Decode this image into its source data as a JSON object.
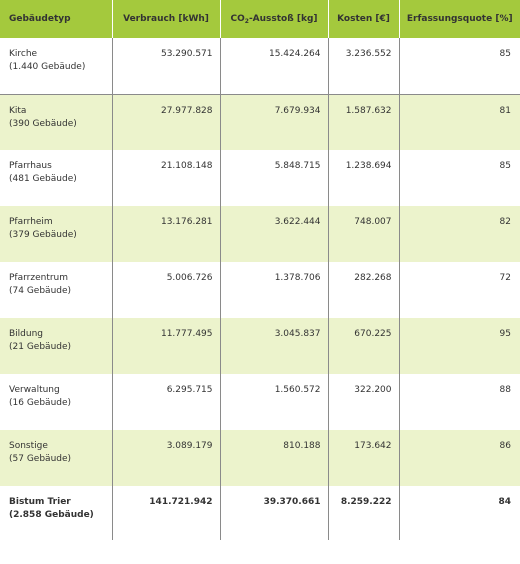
{
  "table": {
    "headers": {
      "type": "Gebäudetyp",
      "consumption": "Verbrauch [kWh]",
      "co2_prefix": "CO",
      "co2_sub": "2",
      "co2_suffix": "-Ausstoß [kg]",
      "cost": "Kosten [€]",
      "rate": "Erfassungsquote [%]"
    },
    "rows": [
      {
        "name": "Kirche",
        "count": "(1.440 Gebäude)",
        "consumption": "53.290.571",
        "co2": "15.424.264",
        "cost": "3.236.552",
        "rate": "85"
      },
      {
        "name": "Kita",
        "count": "(390 Gebäude)",
        "consumption": "27.977.828",
        "co2": "7.679.934",
        "cost": "1.587.632",
        "rate": "81"
      },
      {
        "name": "Pfarrhaus",
        "count": "(481 Gebäude)",
        "consumption": "21.108.148",
        "co2": "5.848.715",
        "cost": "1.238.694",
        "rate": "85"
      },
      {
        "name": "Pfarrheim",
        "count": "(379 Gebäude)",
        "consumption": "13.176.281",
        "co2": "3.622.444",
        "cost": "748.007",
        "rate": "82"
      },
      {
        "name": "Pfarrzentrum",
        "count": "(74 Gebäude)",
        "consumption": "5.006.726",
        "co2": "1.378.706",
        "cost": "282.268",
        "rate": "72"
      },
      {
        "name": "Bildung",
        "count": "(21 Gebäude)",
        "consumption": "11.777.495",
        "co2": "3.045.837",
        "cost": "670.225",
        "rate": "95"
      },
      {
        "name": "Verwaltung",
        "count": "(16 Gebäude)",
        "consumption": "6.295.715",
        "co2": "1.560.572",
        "cost": "322.200",
        "rate": "88"
      },
      {
        "name": "Sonstige",
        "count": "(57 Gebäude)",
        "consumption": "3.089.179",
        "co2": "810.188",
        "cost": "173.642",
        "rate": "86"
      },
      {
        "name": "Bistum Trier",
        "count": "(2.858 Gebäude)",
        "consumption": "141.721.942",
        "co2": "39.370.661",
        "cost": "8.259.222",
        "rate": "84"
      }
    ]
  },
  "colors": {
    "header_bg": "#a4c93d",
    "alt_row_bg": "#ecf3cc",
    "text": "#333333",
    "rule": "#8a8a8a"
  }
}
